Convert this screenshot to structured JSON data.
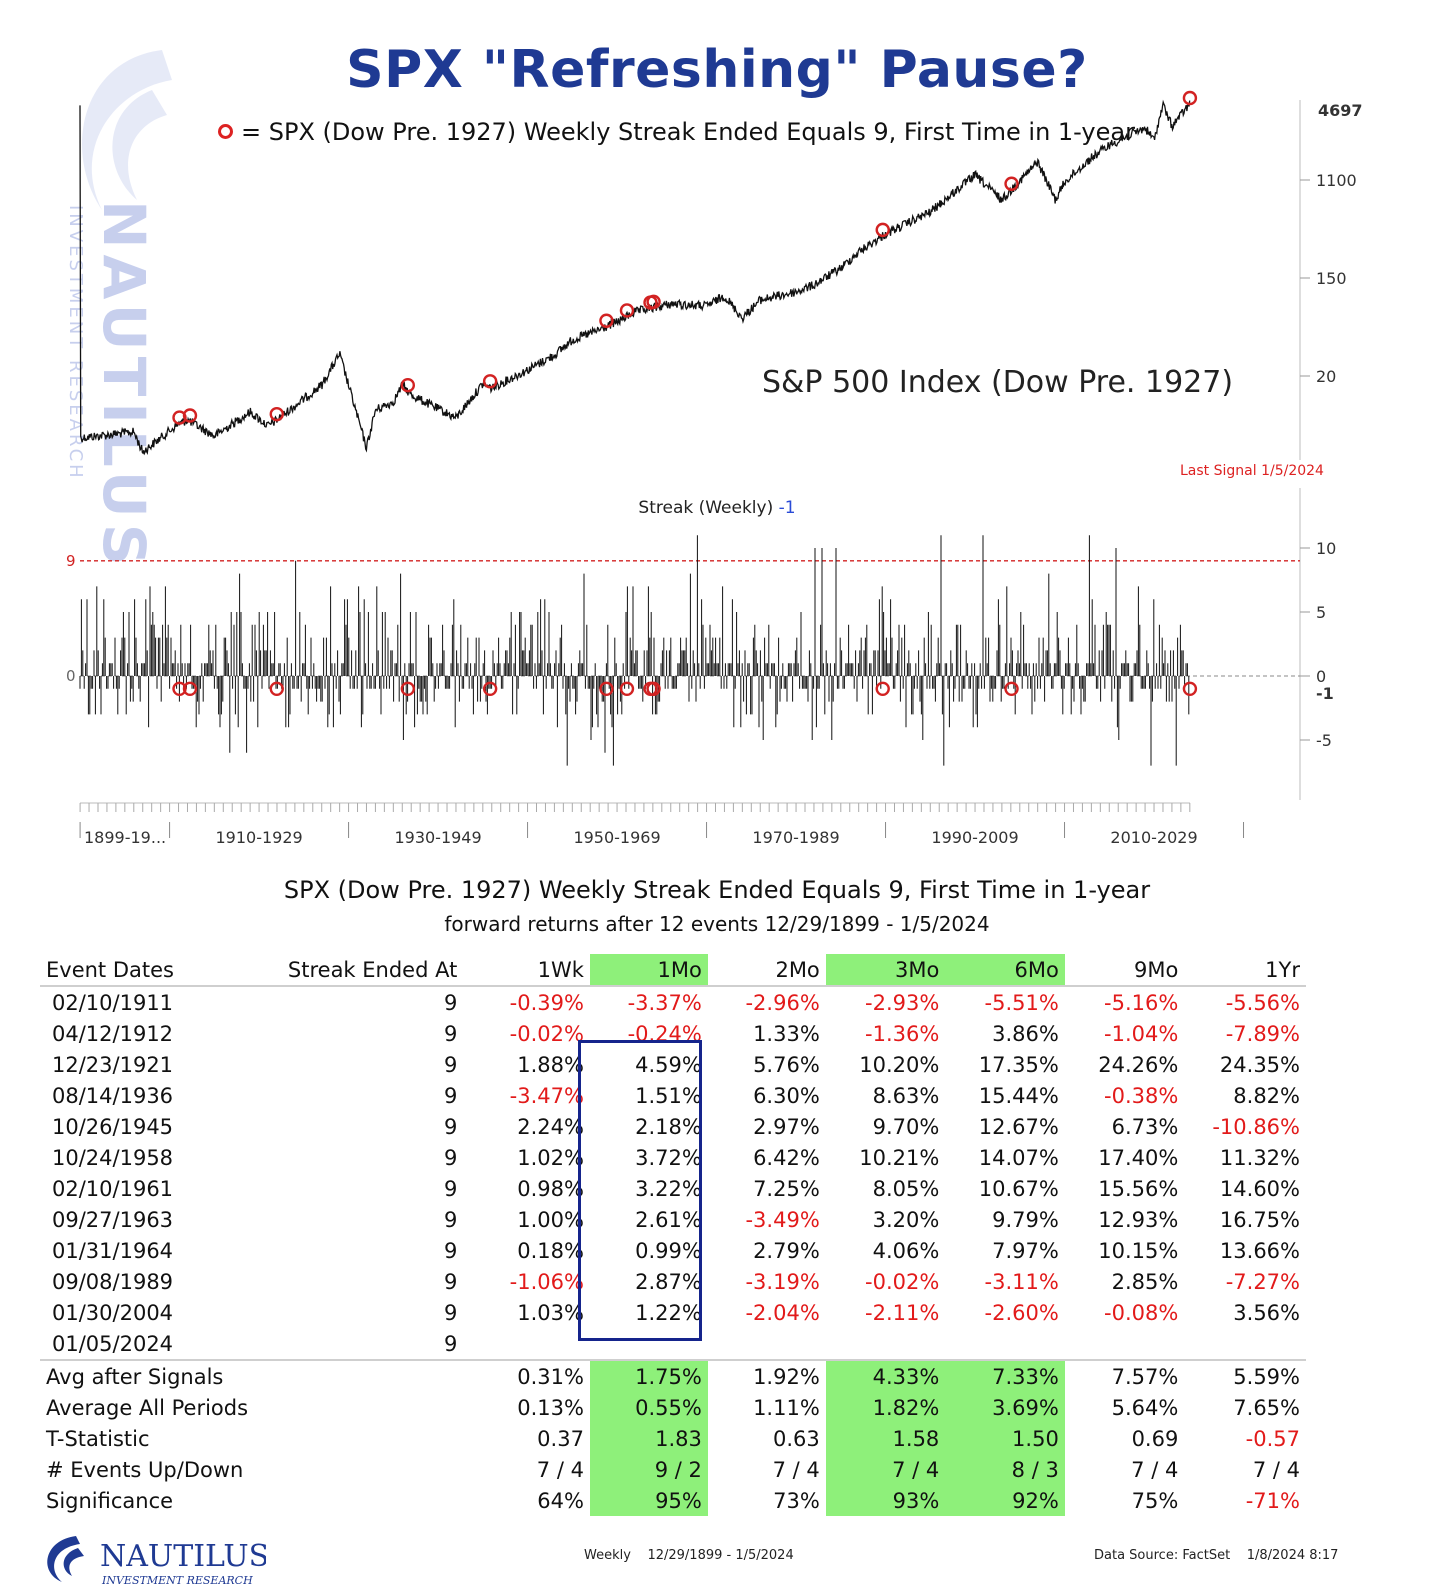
{
  "title": "SPX \"Refreshing\" Pause?",
  "legend": "= SPX (Dow Pre. 1927) Weekly Streak Ended Equals 9, First Time in 1-year",
  "chart_name": "S&P 500 Index (Dow Pre. 1927)",
  "last_signal": "Last Signal 1/5/2024",
  "streak_label": "Streak (Weekly)",
  "streak_value": "-1",
  "watermark": {
    "name": "NAUTILUS",
    "sub": "INVESTMENT RESEARCH"
  },
  "colors": {
    "title": "#1f3a93",
    "signal": "#d22222",
    "highlight": "#8ef07a",
    "box": "#15248c",
    "negative": "#e21a1a"
  },
  "chart_data": [
    {
      "type": "line",
      "title": "S&P 500 Index (Dow Pre. 1927)",
      "scale": "log",
      "y_ticks": [
        "1100",
        "150",
        "20"
      ],
      "last_value_label": "4697",
      "signals": [
        "1911-02-10",
        "1912-04-12",
        "1921-12-23",
        "1936-08-14",
        "1945-10-26",
        "1958-10-24",
        "1961-02-10",
        "1963-09-27",
        "1964-01-31",
        "1989-09-08",
        "2004-01-30",
        "2024-01-05"
      ]
    },
    {
      "type": "bar",
      "title": "Streak (Weekly)",
      "threshold": 9,
      "threshold_label": "9",
      "zero_label": "0",
      "last_value": -1,
      "last_value_label": "-1",
      "y_ticks": [
        "10",
        "5",
        "0",
        "-5"
      ],
      "x_labels": [
        "1899-19...",
        "1910-1929",
        "1930-1949",
        "1950-1969",
        "1970-1989",
        "1990-2009",
        "2010-2029"
      ]
    }
  ],
  "table": {
    "title": "SPX (Dow Pre. 1927) Weekly Streak Ended Equals 9, First Time in 1-year",
    "subtitle": "forward returns after 12 events 12/29/1899 - 1/5/2024",
    "headers": [
      "Event Dates",
      "Streak Ended At",
      "1Wk",
      "1Mo",
      "2Mo",
      "3Mo",
      "6Mo",
      "9Mo",
      "1Yr"
    ],
    "rows": [
      [
        "02/10/1911",
        "9",
        "-0.39%",
        "-3.37%",
        "-2.96%",
        "-2.93%",
        "-5.51%",
        "-5.16%",
        "-5.56%"
      ],
      [
        "04/12/1912",
        "9",
        "-0.02%",
        "-0.24%",
        "1.33%",
        "-1.36%",
        "3.86%",
        "-1.04%",
        "-7.89%"
      ],
      [
        "12/23/1921",
        "9",
        "1.88%",
        "4.59%",
        "5.76%",
        "10.20%",
        "17.35%",
        "24.26%",
        "24.35%"
      ],
      [
        "08/14/1936",
        "9",
        "-3.47%",
        "1.51%",
        "6.30%",
        "8.63%",
        "15.44%",
        "-0.38%",
        "8.82%"
      ],
      [
        "10/26/1945",
        "9",
        "2.24%",
        "2.18%",
        "2.97%",
        "9.70%",
        "12.67%",
        "6.73%",
        "-10.86%"
      ],
      [
        "10/24/1958",
        "9",
        "1.02%",
        "3.72%",
        "6.42%",
        "10.21%",
        "14.07%",
        "17.40%",
        "11.32%"
      ],
      [
        "02/10/1961",
        "9",
        "0.98%",
        "3.22%",
        "7.25%",
        "8.05%",
        "10.67%",
        "15.56%",
        "14.60%"
      ],
      [
        "09/27/1963",
        "9",
        "1.00%",
        "2.61%",
        "-3.49%",
        "3.20%",
        "9.79%",
        "12.93%",
        "16.75%"
      ],
      [
        "01/31/1964",
        "9",
        "0.18%",
        "0.99%",
        "2.79%",
        "4.06%",
        "7.97%",
        "10.15%",
        "13.66%"
      ],
      [
        "09/08/1989",
        "9",
        "-1.06%",
        "2.87%",
        "-3.19%",
        "-0.02%",
        "-3.11%",
        "2.85%",
        "-7.27%"
      ],
      [
        "01/30/2004",
        "9",
        "1.03%",
        "1.22%",
        "-2.04%",
        "-2.11%",
        "-2.60%",
        "-0.08%",
        "3.56%"
      ],
      [
        "01/05/2024",
        "9",
        "",
        "",
        "",
        "",
        "",
        "",
        ""
      ]
    ],
    "summary": [
      [
        "Avg after Signals",
        "",
        "0.31%",
        "1.75%",
        "1.92%",
        "4.33%",
        "7.33%",
        "7.57%",
        "5.59%"
      ],
      [
        "Average All Periods",
        "",
        "0.13%",
        "0.55%",
        "1.11%",
        "1.82%",
        "3.69%",
        "5.64%",
        "7.65%"
      ],
      [
        "T-Statistic",
        "",
        "0.37",
        "1.83",
        "0.63",
        "1.58",
        "1.50",
        "0.69",
        "-0.57"
      ],
      [
        "# Events Up/Down",
        "",
        "7 / 4",
        "9 / 2",
        "7 / 4",
        "7 / 4",
        "8 / 3",
        "7 / 4",
        "7 / 4"
      ],
      [
        "Significance",
        "",
        "64%",
        "95%",
        "73%",
        "93%",
        "92%",
        "75%",
        "-71%"
      ]
    ],
    "highlight_columns": [
      "1Mo",
      "3Mo",
      "6Mo"
    ]
  },
  "footer": {
    "frequency": "Weekly",
    "range": "12/29/1899 - 1/5/2024",
    "source": "Data Source: FactSet",
    "timestamp": "1/8/2024 8:17"
  },
  "logo": {
    "name": "NAUTILUS",
    "sub": "INVESTMENT RESEARCH"
  }
}
